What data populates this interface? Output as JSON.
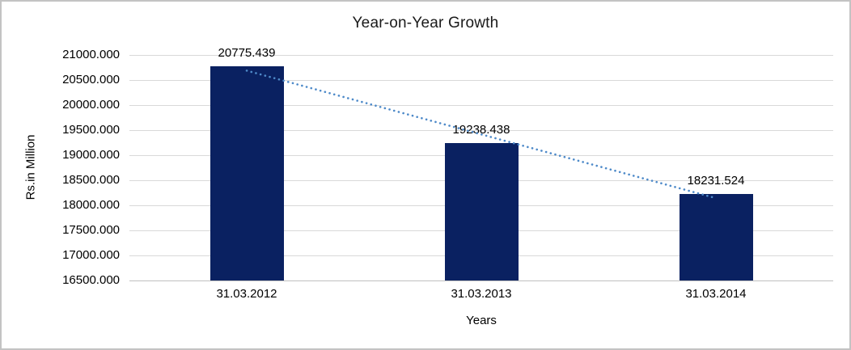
{
  "chart_data": {
    "type": "bar",
    "title": "Year-on-Year Growth",
    "categories": [
      "31.03.2012",
      "31.03.2013",
      "31.03.2014"
    ],
    "values": [
      20775.439,
      19238.438,
      18231.524
    ],
    "data_labels": [
      "20775.439",
      "19238.438",
      "18231.524"
    ],
    "xlabel": "Years",
    "ylabel": "Rs.in Million",
    "ylim": [
      16500,
      21000
    ],
    "ytick_step": 500,
    "ytick_decimals": 3,
    "grid": true,
    "legend": "none",
    "trendline": {
      "type": "linear",
      "style": "dotted"
    },
    "colors": {
      "bar": "#0a2161",
      "trendline": "#4e8ac9",
      "gridline": "#d9d9d9",
      "axis_line": "#bfbfbf",
      "text": "#000000",
      "background": "#ffffff",
      "border": "#c3c3c3"
    }
  }
}
